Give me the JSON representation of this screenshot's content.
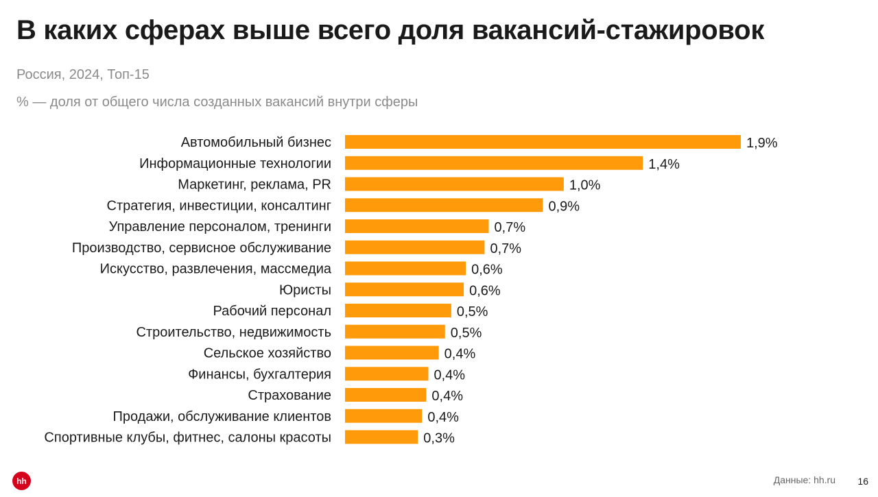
{
  "chart_data": {
    "type": "bar",
    "orientation": "horizontal",
    "title": "В каких сферах выше всего доля вакансий-стажировок",
    "subtitle": "Россия, 2024, Топ-15",
    "note": "% — доля от общего числа созданных вакансий внутри сферы",
    "color": "#FF9A0A",
    "unit": "%",
    "categories": [
      "Автомобильный бизнес",
      "Информационные технологии",
      "Маркетинг, реклама, PR",
      "Стратегия, инвестиции, консалтинг",
      "Управление персоналом, тренинги",
      "Производство, сервисное обслуживание",
      "Искусство, развлечения, массмедиа",
      "Юристы",
      "Рабочий персонал",
      "Строительство, недвижимость",
      "Сельское хозяйство",
      "Финансы, бухгалтерия",
      "Страхование",
      "Продажи, обслуживание клиентов",
      "Спортивные клубы, фитнес, салоны красоты"
    ],
    "values": [
      1.9,
      1.43,
      1.05,
      0.95,
      0.69,
      0.67,
      0.58,
      0.57,
      0.51,
      0.48,
      0.45,
      0.4,
      0.39,
      0.37,
      0.35
    ],
    "labels": [
      "1,9%",
      "1,4%",
      "1,0%",
      "0,9%",
      "0,7%",
      "0,7%",
      "0,6%",
      "0,6%",
      "0,5%",
      "0,5%",
      "0,4%",
      "0,4%",
      "0,4%",
      "0,4%",
      "0,3%"
    ],
    "xlim": [
      0,
      1.9
    ]
  },
  "footer": {
    "logo": "hh",
    "source": "Данные: hh.ru",
    "page": "16"
  }
}
